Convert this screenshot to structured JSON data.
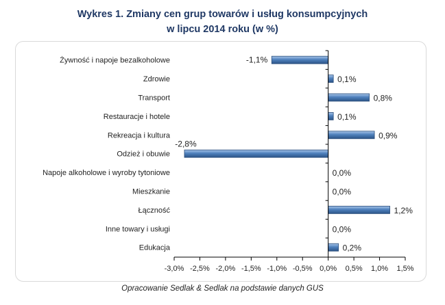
{
  "title": {
    "line1": "Wykres 1. Zmiany cen grup towarów i usług konsumpcyjnych",
    "line2": "w lipcu 2014 roku (w %)"
  },
  "source": "Opracowanie Sedlak & Sedlak na podstawie danych GUS",
  "colors": {
    "bar": "#4f81bd",
    "bar_dark": "#2e5a8e",
    "bar_light": "#9cbde6",
    "axis": "#000000"
  },
  "chart_data": {
    "type": "bar",
    "orientation": "horizontal",
    "title": "Wykres 1. Zmiany cen grup towarów i usług konsumpcyjnych w lipcu 2014 roku (w %)",
    "categories": [
      "Żywność i napoje bezalkoholowe",
      "Zdrowie",
      "Transport",
      "Restauracje i hotele",
      "Rekreacja i kultura",
      "Odzież i obuwie",
      "Napoje alkoholowe  i wyroby tytoniowe",
      "Mieszkanie",
      "Łączność",
      "Inne towary  i usługi",
      "Edukacja"
    ],
    "values": [
      -1.1,
      0.1,
      0.8,
      0.1,
      0.9,
      -2.8,
      0.0,
      0.0,
      1.2,
      0.0,
      0.2
    ],
    "data_labels": [
      "-1,1%",
      "0,1%",
      "0,8%",
      "0,1%",
      "0,9%",
      "-2,8%",
      "0,0%",
      "0,0%",
      "1,2%",
      "0,0%",
      "0,2%"
    ],
    "xlim": [
      -3.0,
      1.5
    ],
    "xticks": [
      -3.0,
      -2.5,
      -2.0,
      -1.5,
      -1.0,
      -0.5,
      0.0,
      0.5,
      1.0,
      1.5
    ],
    "xtick_labels": [
      "-3,0%",
      "-2,5%",
      "-2,0%",
      "-1,5%",
      "-1,0%",
      "-0,5%",
      "0,0%",
      "0,5%",
      "1,0%",
      "1,5%"
    ],
    "grid": false,
    "legend": "none"
  }
}
